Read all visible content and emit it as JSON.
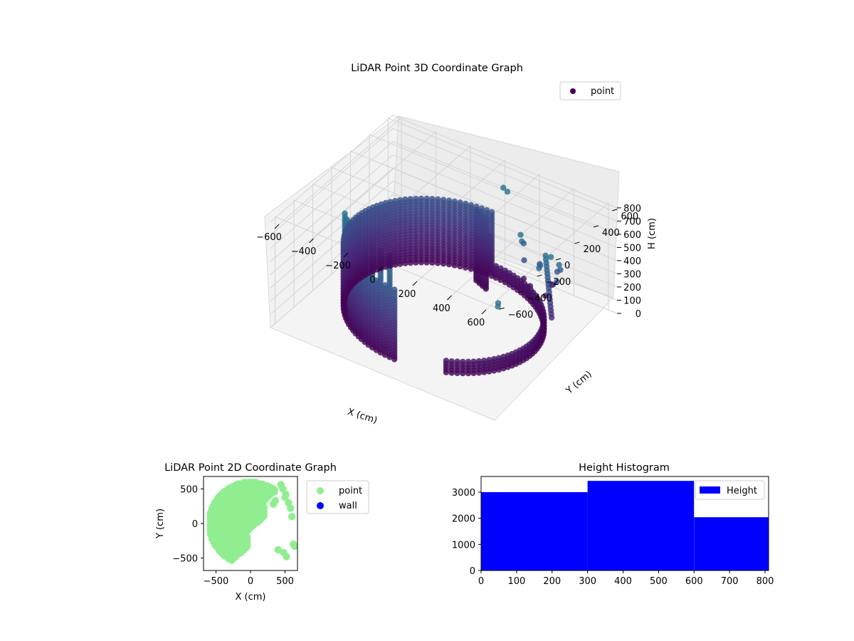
{
  "chart_data": [
    {
      "type": "scatter",
      "title": "LiDAR Point 3D Coordinate Graph",
      "xlabel": "X (cm)",
      "ylabel": "Y (cm)",
      "zlabel": "H (cm)",
      "x_ticks": [
        "−600",
        "−400",
        "−200",
        "0",
        "200",
        "400",
        "600"
      ],
      "y_ticks": [
        "−600",
        "−400",
        "−200",
        "0",
        "200",
        "400",
        "600"
      ],
      "z_ticks": [
        "0",
        "100",
        "200",
        "300",
        "400",
        "500",
        "600",
        "700",
        "800"
      ],
      "xlim": [
        -650,
        650
      ],
      "ylim": [
        -650,
        650
      ],
      "zlim": [
        0,
        810
      ],
      "z_inverted": true,
      "colormap": "viridis",
      "grid": true,
      "legend": {
        "position": "top-right",
        "entries": [
          {
            "label": "point",
            "color": "#440154"
          }
        ]
      },
      "radius": 510
    },
    {
      "type": "scatter",
      "title": "LiDAR Point 2D Coordinate Graph",
      "xlabel": "X (cm)",
      "ylabel": "Y (cm)",
      "x_ticks": [
        "−500",
        "0",
        "500"
      ],
      "y_ticks": [
        "−500",
        "0",
        "500"
      ],
      "xlim": [
        -680,
        680
      ],
      "ylim": [
        -680,
        680
      ],
      "series": [
        {
          "name": "point",
          "color": "#90ee90"
        },
        {
          "name": "wall",
          "color": "#0000ff"
        }
      ],
      "legend": {
        "position": "outside-right"
      }
    },
    {
      "type": "bar",
      "title": "Height Histogram",
      "xlabel": "",
      "ylabel": "",
      "bin_edges": [
        0,
        300,
        600,
        810
      ],
      "values": [
        3000,
        3430,
        2040
      ],
      "xlim": [
        0,
        810
      ],
      "ylim": [
        0,
        3600
      ],
      "x_ticks": [
        "0",
        "100",
        "200",
        "300",
        "400",
        "500",
        "600",
        "700",
        "800"
      ],
      "y_ticks": [
        "0",
        "1000",
        "2000",
        "3000"
      ],
      "color": "#0000ff",
      "legend": {
        "position": "top-right",
        "entries": [
          {
            "label": "Height",
            "color": "#0000ff"
          }
        ]
      }
    }
  ]
}
